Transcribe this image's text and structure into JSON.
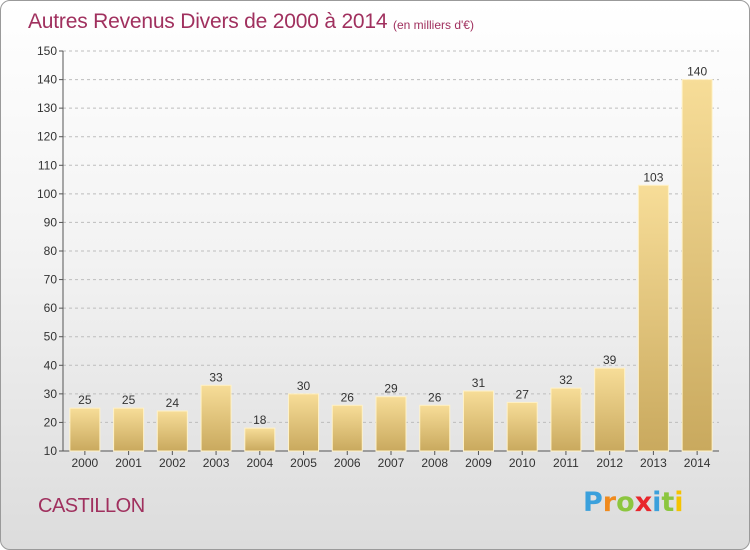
{
  "title": "Autres Revenus Divers de 2000 à 2014",
  "unit_note": "(en milliers d'€)",
  "commune": "CASTILLON",
  "logo": {
    "letters": [
      "P",
      "r",
      "o",
      "x",
      "i",
      "t",
      "i"
    ],
    "colors": [
      "#3aa0dc",
      "#f08a1d",
      "#8cc63f",
      "#e8262c",
      "#3aa0dc",
      "#8cc63f",
      "#f5c300"
    ]
  },
  "colors": {
    "title": "#a0305e",
    "bar_light": "#f7dd98",
    "bar_dark": "#c9a95e",
    "axis": "#555555"
  },
  "chart_data": {
    "type": "bar",
    "title": "Autres Revenus Divers de 2000 à 2014",
    "categories": [
      "2000",
      "2001",
      "2002",
      "2003",
      "2004",
      "2005",
      "2006",
      "2007",
      "2008",
      "2009",
      "2010",
      "2011",
      "2012",
      "2013",
      "2014"
    ],
    "values": [
      25,
      25,
      24,
      33,
      18,
      30,
      26,
      29,
      26,
      31,
      27,
      32,
      39,
      103,
      140
    ],
    "ylim": [
      10,
      150
    ],
    "yticks": [
      10,
      20,
      30,
      40,
      50,
      60,
      70,
      80,
      90,
      100,
      110,
      120,
      130,
      140,
      150
    ],
    "grid": "horizontal dashed",
    "xlabel": "",
    "ylabel": ""
  }
}
